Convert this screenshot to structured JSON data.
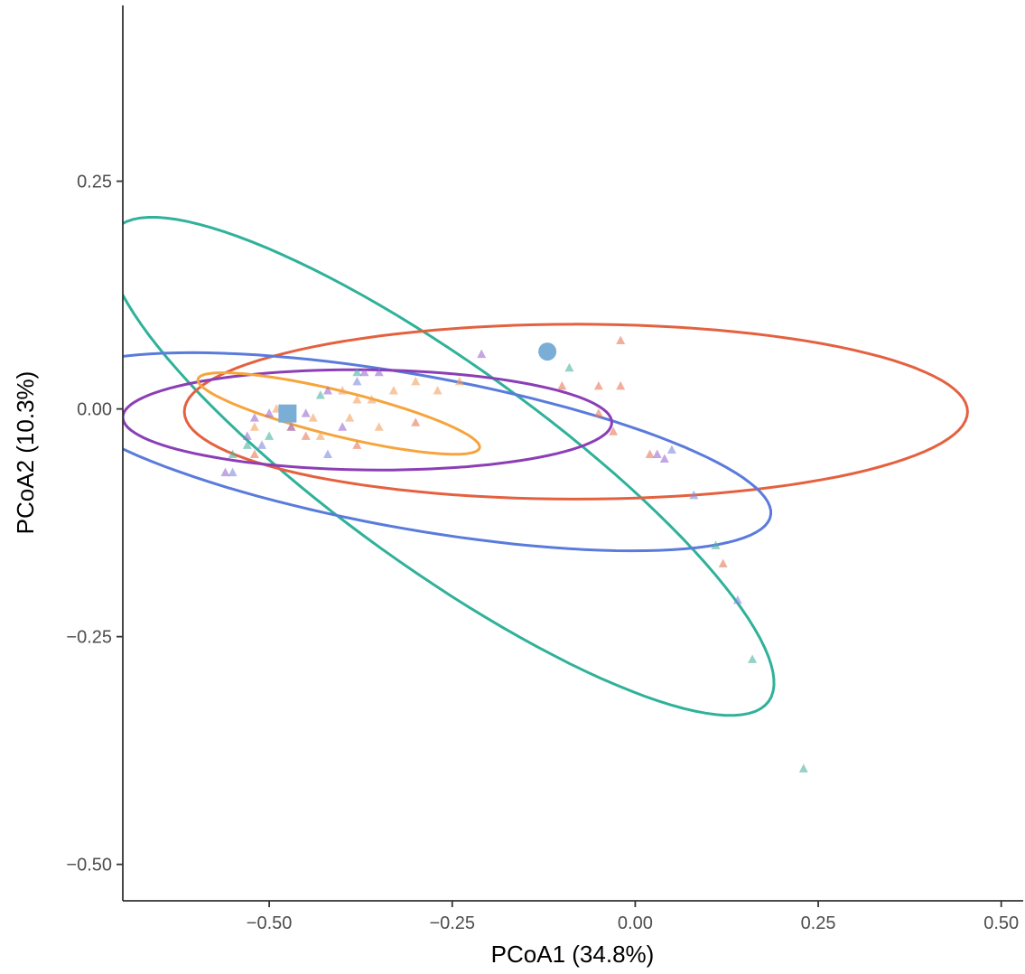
{
  "chart_data": {
    "type": "scatter",
    "title": "",
    "xlabel": "PCoA1 (34.8%)",
    "ylabel": "PCoA2 (10.3%)",
    "xlim": [
      -0.7,
      0.53
    ],
    "ylim": [
      -0.54,
      0.443
    ],
    "x_ticks": [
      -0.5,
      -0.25,
      0.0,
      0.25,
      0.5
    ],
    "x_tick_labels": [
      "−0.50",
      "−0.25",
      "0.00",
      "0.25",
      "0.50"
    ],
    "y_ticks": [
      0.25,
      0.0,
      -0.25,
      -0.5
    ],
    "y_tick_labels": [
      "0.25",
      "0.00",
      "−0.25",
      "−0.50"
    ],
    "grid": false,
    "legend": "none",
    "series": [
      {
        "color": "#f4a261",
        "points": [
          [
            -0.52,
            -0.02
          ],
          [
            -0.49,
            0.0
          ],
          [
            -0.47,
            -0.02
          ],
          [
            -0.44,
            -0.01
          ],
          [
            -0.4,
            0.02
          ],
          [
            -0.38,
            0.01
          ],
          [
            -0.36,
            0.01
          ],
          [
            -0.35,
            -0.02
          ],
          [
            -0.33,
            0.02
          ],
          [
            -0.3,
            0.03
          ],
          [
            -0.27,
            0.02
          ],
          [
            -0.24,
            0.03
          ],
          [
            -0.43,
            -0.03
          ],
          [
            -0.39,
            -0.01
          ]
        ]
      },
      {
        "color": "#e9785a",
        "points": [
          [
            -0.02,
            0.075
          ],
          [
            -0.1,
            0.025
          ],
          [
            -0.05,
            0.025
          ],
          [
            -0.02,
            0.025
          ],
          [
            -0.05,
            -0.005
          ],
          [
            -0.03,
            -0.025
          ],
          [
            0.02,
            -0.05
          ],
          [
            0.12,
            -0.17
          ],
          [
            -0.3,
            -0.015
          ],
          [
            -0.45,
            -0.03
          ],
          [
            -0.38,
            -0.04
          ],
          [
            -0.52,
            -0.05
          ]
        ]
      },
      {
        "color": "#4fb3a0",
        "points": [
          [
            -0.09,
            0.045
          ],
          [
            0.11,
            -0.15
          ],
          [
            0.16,
            -0.275
          ],
          [
            0.23,
            -0.395
          ],
          [
            -0.55,
            -0.05
          ],
          [
            -0.53,
            -0.04
          ],
          [
            -0.5,
            -0.03
          ],
          [
            -0.43,
            0.015
          ],
          [
            -0.38,
            0.04
          ]
        ]
      },
      {
        "color": "#7f8be0",
        "points": [
          [
            0.08,
            -0.095
          ],
          [
            0.14,
            -0.21
          ],
          [
            0.05,
            -0.045
          ],
          [
            -0.38,
            0.03
          ],
          [
            -0.42,
            -0.05
          ],
          [
            -0.51,
            -0.04
          ],
          [
            -0.55,
            -0.07
          ]
        ]
      },
      {
        "color": "#9b6bd0",
        "points": [
          [
            -0.56,
            -0.07
          ],
          [
            -0.53,
            -0.03
          ],
          [
            -0.5,
            -0.005
          ],
          [
            -0.47,
            -0.02
          ],
          [
            -0.45,
            -0.005
          ],
          [
            -0.42,
            0.02
          ],
          [
            -0.4,
            -0.02
          ],
          [
            -0.37,
            0.04
          ],
          [
            -0.35,
            0.04
          ],
          [
            -0.21,
            0.06
          ],
          [
            0.03,
            -0.05
          ],
          [
            0.04,
            -0.055
          ],
          [
            -0.52,
            -0.01
          ]
        ]
      }
    ],
    "ellipses": [
      {
        "color": "#2fb19a",
        "cx": -0.265,
        "cy": -0.063,
        "rx": 0.517,
        "ry": 0.119,
        "angle_deg": -29.3
      },
      {
        "color": "#e4613f",
        "cx": -0.081,
        "cy": -0.003,
        "rx": 0.535,
        "ry": 0.096,
        "angle_deg": 0.0
      },
      {
        "color": "#5a7bdc",
        "cx": -0.305,
        "cy": -0.047,
        "rx": 0.495,
        "ry": 0.085,
        "angle_deg": -8.0
      },
      {
        "color": "#8b3eb5",
        "cx": -0.366,
        "cy": -0.012,
        "rx": 0.334,
        "ry": 0.055,
        "angle_deg": -0.5
      },
      {
        "color": "#f5a53c",
        "cx": -0.405,
        "cy": -0.005,
        "rx": 0.196,
        "ry": 0.025,
        "angle_deg": -11.0
      }
    ],
    "markers": [
      {
        "shape": "circle",
        "color": "#7aaed6",
        "x": -0.12,
        "y": 0.063
      },
      {
        "shape": "square",
        "color": "#7aaed6",
        "x": -0.475,
        "y": -0.005
      }
    ]
  }
}
